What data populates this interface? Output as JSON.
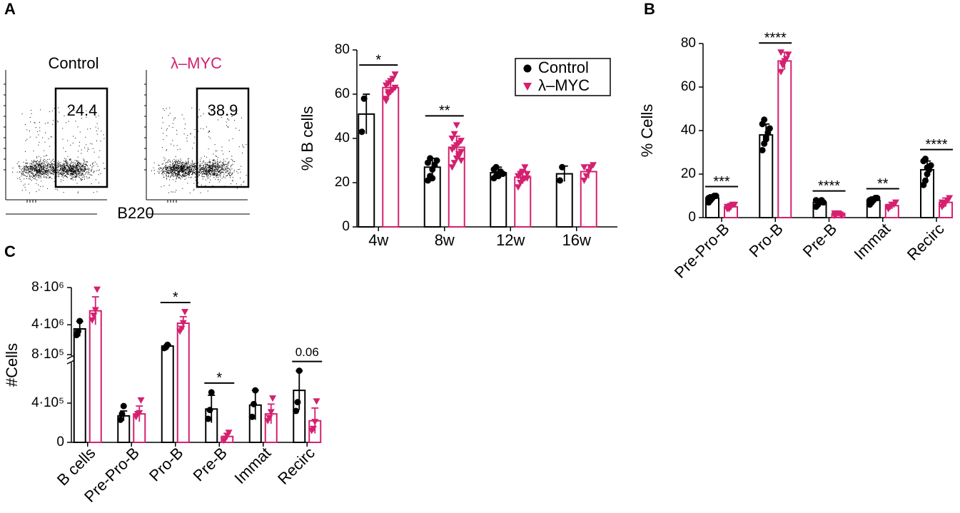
{
  "panels": [
    "A",
    "B",
    "C"
  ],
  "flow": {
    "titles": [
      "Control",
      "λ–MYC"
    ],
    "gates": [
      24.4,
      38.9
    ],
    "xlabel": "B220"
  },
  "chart_data": [
    {
      "type": "bar",
      "ylabel": "% B cells",
      "categories": [
        "4w",
        "8w",
        "12w",
        "16w"
      ],
      "ylim": [
        0,
        80
      ],
      "yticks": [
        0,
        20,
        40,
        60,
        80
      ],
      "legend": "upper right",
      "series": [
        {
          "name": "Control",
          "color": "#000000",
          "values": [
            51,
            27,
            24.5,
            24
          ],
          "errors": [
            9,
            4,
            2.5,
            3.5
          ],
          "points": [
            [
              43,
              58
            ],
            [
              21,
              23,
              26,
              28,
              30,
              29,
              31,
              22
            ],
            [
              22,
              23,
              24,
              25,
              24,
              26,
              27,
              23
            ],
            [
              21,
              27
            ]
          ]
        },
        {
          "name": "λ–MYC",
          "color": "#d4206f",
          "values": [
            63,
            36,
            22.5,
            25
          ],
          "errors": [
            3,
            5,
            3,
            3
          ],
          "points": [
            [
              58,
              60,
              61,
              62,
              63,
              64,
              65,
              66,
              67,
              69,
              57,
              61
            ],
            [
              27,
              29,
              31,
              33,
              34,
              35,
              36,
              37,
              38,
              39,
              40,
              42,
              46,
              32,
              30
            ],
            [
              18,
              20,
              21,
              22,
              22,
              23,
              24,
              25,
              27,
              24
            ],
            [
              21,
              23,
              25,
              27,
              28,
              27
            ]
          ]
        }
      ],
      "significance": [
        "*",
        "**",
        null,
        null
      ]
    },
    {
      "type": "bar",
      "ylabel": "% Cells",
      "categories": [
        "Pre-Pro-B",
        "Pro-B",
        "Pre-B",
        "Immat",
        "Recirc"
      ],
      "ylim": [
        0,
        80
      ],
      "yticks": [
        0,
        20,
        40,
        60,
        80
      ],
      "series": [
        {
          "color": "#000000",
          "values": [
            9,
            38,
            7,
            8,
            22
          ],
          "errors": [
            1.5,
            5,
            1.5,
            1.5,
            4
          ],
          "points": [
            [
              7,
              8,
              9,
              10,
              10,
              9,
              8
            ],
            [
              31,
              34,
              37,
              39,
              41,
              43,
              45,
              36
            ],
            [
              5,
              6,
              7,
              8,
              7,
              8,
              6
            ],
            [
              6,
              7,
              8,
              9,
              9,
              8
            ],
            [
              15,
              17,
              20,
              22,
              24,
              26,
              27,
              23
            ]
          ]
        },
        {
          "color": "#d4206f",
          "values": [
            5,
            72,
            1.5,
            5.5,
            7
          ],
          "errors": [
            1.5,
            4,
            0.5,
            1.5,
            2
          ],
          "points": [
            [
              4,
              5,
              5,
              6,
              6,
              5,
              4
            ],
            [
              67,
              70,
              72,
              73,
              75,
              76,
              71
            ],
            [
              1,
              1.5,
              2,
              1.5,
              1,
              2
            ],
            [
              4,
              5,
              6,
              6,
              7,
              5
            ],
            [
              5,
              6,
              7,
              8,
              9,
              7
            ]
          ]
        }
      ],
      "significance": [
        "***",
        "****",
        "****",
        "**",
        "****"
      ]
    },
    {
      "type": "bar",
      "ylabel": "#Cells",
      "categories": [
        "B cells",
        "Pre-Pro-B",
        "Pro-B",
        "Pre-B",
        "Immat",
        "Recirc"
      ],
      "ylim_lower": [
        0,
        800000
      ],
      "ylim_upper": [
        800000,
        8000000
      ],
      "yticks": [
        0,
        {
          "value": 400000,
          "label": "4·10⁵"
        },
        {
          "value": 800000,
          "label": "8·10⁵"
        },
        {
          "value": 4000000,
          "label": "4·10⁶"
        },
        {
          "value": 8000000,
          "label": "8·10⁶"
        }
      ],
      "series": [
        {
          "color": "#000000",
          "values": [
            3560000,
            270000,
            1720000,
            340000,
            380000,
            530000
          ],
          "errors": [
            800000,
            50000,
            150000,
            140000,
            150000,
            200000
          ],
          "points": [
            [
              2900000,
              3300000,
              4400000
            ],
            [
              230000,
              290000,
              370000
            ],
            [
              1500000,
              1600000,
              1850000
            ],
            [
              240000,
              330000,
              510000
            ],
            [
              260000,
              390000,
              530000
            ],
            [
              320000,
              410000,
              730000
            ]
          ]
        },
        {
          "color": "#d4206f",
          "values": [
            5500000,
            290000,
            4170000,
            60000,
            290000,
            220000
          ],
          "errors": [
            1500000,
            80000,
            700000,
            30000,
            100000,
            130000
          ],
          "points": [
            [
              4500000,
              5000000,
              5600000,
              7800000
            ],
            [
              260000,
              290000,
              300000,
              430000
            ],
            [
              3300000,
              3600000,
              4200000,
              5400000
            ],
            [
              20000,
              40000,
              70000,
              100000
            ],
            [
              220000,
              250000,
              310000,
              450000
            ],
            [
              120000,
              140000,
              210000,
              420000
            ]
          ]
        }
      ],
      "significance": [
        null,
        null,
        "*",
        "*",
        null,
        "0.06"
      ]
    }
  ]
}
